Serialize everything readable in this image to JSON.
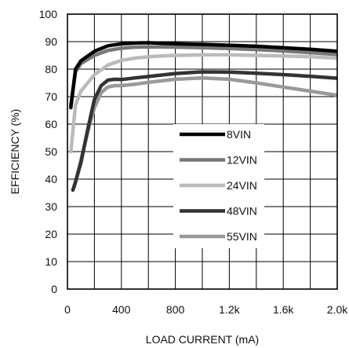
{
  "chart_data": {
    "type": "line",
    "xlabel": "LOAD CURRENT (mA)",
    "ylabel": "EFFICIENCY (%)",
    "xlim": [
      0,
      2000
    ],
    "ylim": [
      0,
      100
    ],
    "x_ticks": [
      {
        "value": 0,
        "label": "0"
      },
      {
        "value": 400,
        "label": "400"
      },
      {
        "value": 800,
        "label": "800"
      },
      {
        "value": 1200,
        "label": "1.2k"
      },
      {
        "value": 1600,
        "label": "1.6k"
      },
      {
        "value": 2000,
        "label": "2.0k"
      }
    ],
    "y_ticks": [
      0,
      10,
      20,
      30,
      40,
      50,
      60,
      70,
      80,
      90,
      100
    ],
    "grid": true,
    "legend_position": "center-right",
    "series": [
      {
        "name": "8VIN",
        "color": "#000000",
        "x": [
          25,
          60,
          100,
          200,
          300,
          400,
          500,
          600,
          700,
          800,
          1000,
          1200,
          1400,
          1600,
          1800,
          2000
        ],
        "y": [
          66,
          80,
          83,
          86.5,
          88.5,
          89.2,
          89.5,
          89.6,
          89.4,
          89.2,
          89,
          88.7,
          88.3,
          87.8,
          87.2,
          86.5
        ]
      },
      {
        "name": "12VIN",
        "color": "#777777",
        "x": [
          25,
          60,
          100,
          200,
          300,
          400,
          500,
          600,
          700,
          800,
          1000,
          1200,
          1400,
          1600,
          1800,
          2000
        ],
        "y": [
          67,
          79,
          82,
          85,
          86.8,
          87.6,
          88,
          88.1,
          88.1,
          88,
          87.8,
          87.5,
          87.1,
          86.6,
          86,
          85.3
        ]
      },
      {
        "name": "24VIN",
        "color": "#bbbbbb",
        "x": [
          25,
          60,
          100,
          200,
          300,
          400,
          500,
          600,
          700,
          800,
          1000,
          1200,
          1400,
          1600,
          1800,
          2000
        ],
        "y": [
          50,
          67,
          72,
          78,
          81.5,
          83.2,
          84,
          84.5,
          84.8,
          85,
          85.2,
          85.2,
          85,
          84.8,
          84.5,
          84
        ]
      },
      {
        "name": "48VIN",
        "color": "#333333",
        "x": [
          40,
          60,
          100,
          150,
          200,
          250,
          300,
          350,
          400,
          500,
          600,
          800,
          1000,
          1200,
          1400,
          1600,
          1800,
          2000
        ],
        "y": [
          36,
          39,
          46,
          58,
          69,
          74,
          76,
          76.3,
          76.2,
          76.8,
          77.3,
          78.4,
          79,
          78.9,
          78.5,
          78,
          77.4,
          76.7
        ]
      },
      {
        "name": "55VIN",
        "color": "#999999",
        "x": [
          50,
          70,
          100,
          150,
          200,
          250,
          300,
          350,
          400,
          500,
          600,
          800,
          1000,
          1200,
          1400,
          1600,
          1800,
          2000
        ],
        "y": [
          37,
          41,
          47,
          57,
          66,
          71.5,
          73.5,
          74,
          74,
          74.5,
          75.2,
          76.3,
          76.8,
          76.3,
          75,
          73.5,
          72,
          70.5
        ]
      }
    ]
  }
}
